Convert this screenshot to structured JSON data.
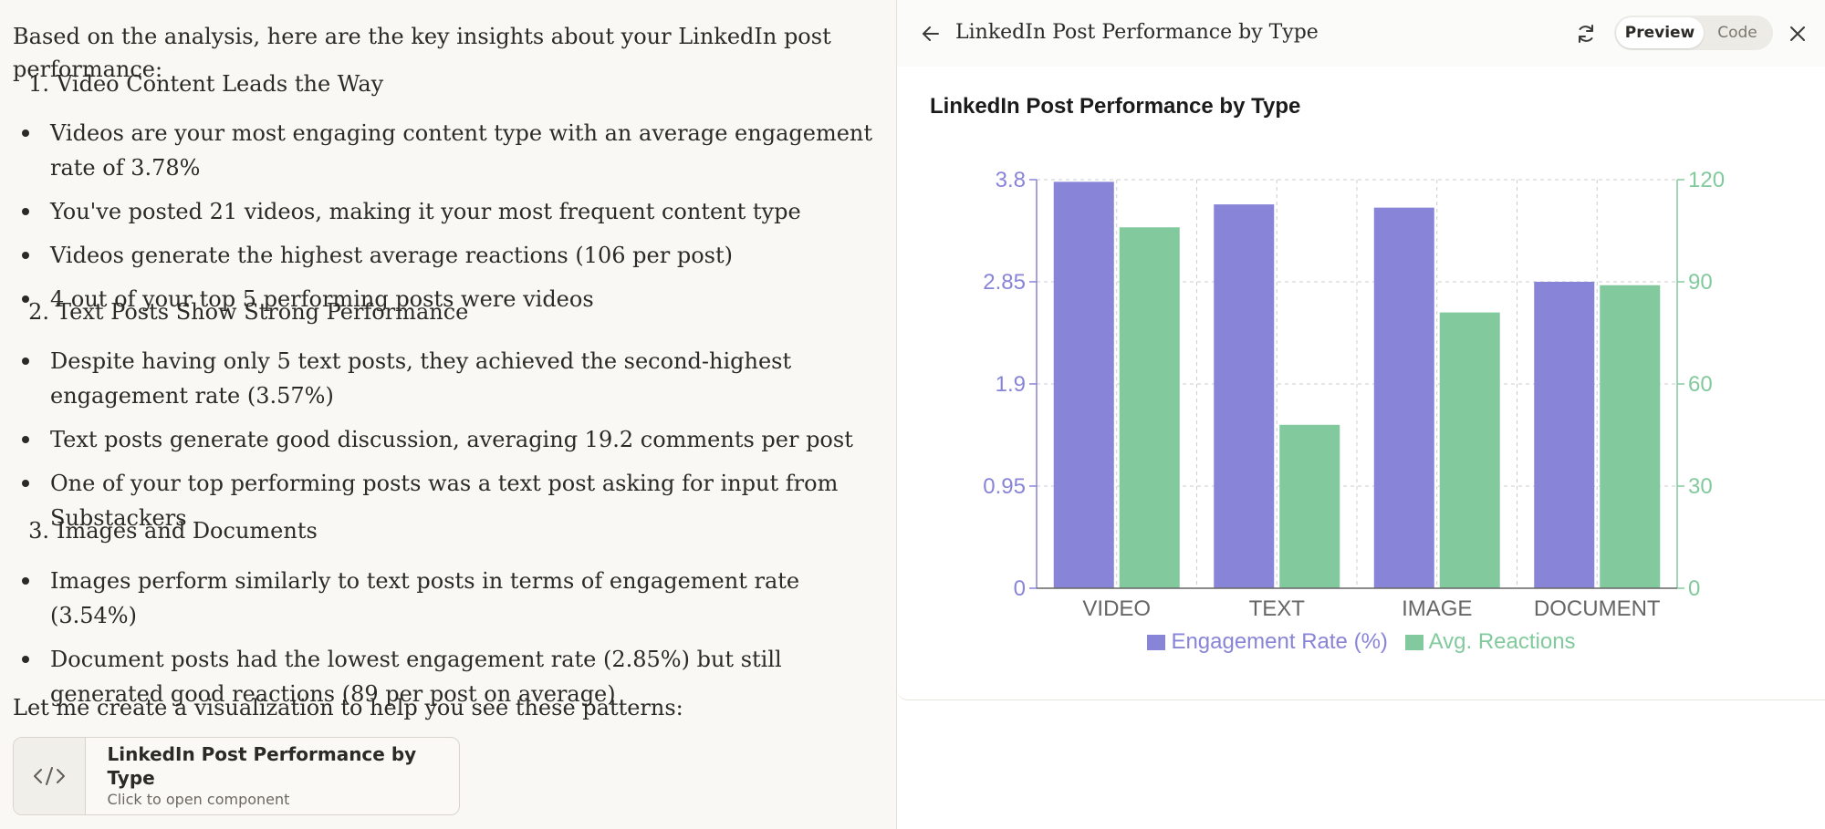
{
  "chat": {
    "intro": "Based on the analysis, here are the key insights about your LinkedIn post performance:",
    "sections": [
      {
        "number": "1.",
        "heading": "Video Content Leads the Way",
        "bullets": [
          "Videos are your most engaging content type with an average engagement rate of 3.78%",
          "You've posted 21 videos, making it your most frequent content type",
          "Videos generate the highest average reactions (106 per post)",
          "4 out of your top 5 performing posts were videos"
        ]
      },
      {
        "number": "2.",
        "heading": "Text Posts Show Strong Performance",
        "bullets": [
          "Despite having only 5 text posts, they achieved the second-highest engagement rate (3.57%)",
          "Text posts generate good discussion, averaging 19.2 comments per post",
          "One of your top performing posts was a text post asking for input from Substackers"
        ]
      },
      {
        "number": "3.",
        "heading": "Images and Documents",
        "bullets": [
          "Images perform similarly to text posts in terms of engagement rate (3.54%)",
          "Document posts had the lowest engagement rate (2.85%) but still generated good reactions (89 per post on average)"
        ]
      }
    ],
    "outro": "Let me create a visualization to help you see these patterns:",
    "artifact_card": {
      "title": "LinkedIn Post Performance by Type",
      "subtitle": "Click to open component",
      "icon": "code-icon"
    }
  },
  "panel": {
    "title": "LinkedIn Post Performance by Type",
    "toggle": {
      "preview": "Preview",
      "code": "Code",
      "active": "preview"
    },
    "icons": {
      "back": "arrow-left-icon",
      "refresh": "refresh-icon",
      "close": "close-icon"
    }
  },
  "colors": {
    "engagement": "#8884d8",
    "reactions": "#82ca9d",
    "grid": "#cccccc",
    "axis_text": "#666666"
  },
  "chart_data": {
    "type": "bar",
    "title": "LinkedIn Post Performance by Type",
    "categories": [
      "VIDEO",
      "TEXT",
      "IMAGE",
      "DOCUMENT"
    ],
    "series": [
      {
        "name": "Engagement Rate (%)",
        "axis": "left",
        "values": [
          3.78,
          3.57,
          3.54,
          2.85
        ]
      },
      {
        "name": "Avg. Reactions",
        "axis": "right",
        "values": [
          106,
          48,
          81,
          89
        ]
      }
    ],
    "y_left": {
      "range": [
        0,
        3.8
      ],
      "ticks": [
        "0",
        "0.95",
        "1.9",
        "2.85",
        "3.8"
      ]
    },
    "y_right": {
      "range": [
        0,
        120
      ],
      "ticks": [
        "0",
        "30",
        "60",
        "90",
        "120"
      ]
    },
    "grid": true,
    "legend": "bottom-center"
  }
}
